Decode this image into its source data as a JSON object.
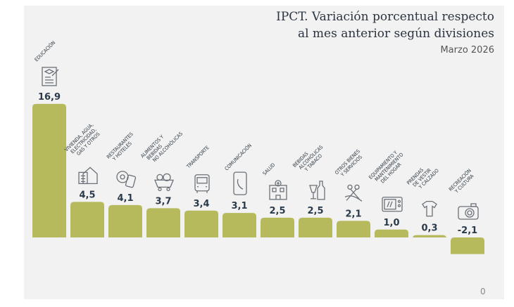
{
  "chart_data": {
    "type": "bar",
    "title": "IPCT. Variación porcentual respecto al mes anterior según divisiones",
    "title_lines": [
      "IPCT. Variación porcentual respecto",
      "al mes anterior según divisiones"
    ],
    "subtitle": "Marzo 2026",
    "categories": [
      {
        "label": [
          "EDUCACIÓN"
        ],
        "icon": "diploma-icon"
      },
      {
        "label": [
          "VIVIENDA, AGUA,",
          "ELECTRICIDAD,",
          "GAS Y OTROS"
        ],
        "icon": "house-icon"
      },
      {
        "label": [
          "RESTAURANTES",
          "Y HOTELES"
        ],
        "icon": "plate-luggage-icon"
      },
      {
        "label": [
          "ALIMENTOS Y",
          "BEBIDAS",
          "NO ALCOHÓLICAS"
        ],
        "icon": "food-cart-icon"
      },
      {
        "label": [
          "TRANSPORTE"
        ],
        "icon": "bus-icon"
      },
      {
        "label": [
          "COMUNICACIÓN"
        ],
        "icon": "phone-icon"
      },
      {
        "label": [
          "SALUD"
        ],
        "icon": "hospital-icon"
      },
      {
        "label": [
          "BEBIDAS",
          "ALCOHÓLICAS",
          "Y TABACO"
        ],
        "icon": "wine-bottle-icon"
      },
      {
        "label": [
          "OTROS BIENES",
          "Y SERVICIOS"
        ],
        "icon": "scissors-icon"
      },
      {
        "label": [
          "EQUIPAMIENTO Y",
          "MANTENIMIENTO",
          "DEL HOGAR"
        ],
        "icon": "microwave-icon"
      },
      {
        "label": [
          "PRENDAS",
          "DE VESTIR",
          "Y CALZADO"
        ],
        "icon": "clothes-icon"
      },
      {
        "label": [
          "RECREACIÓN",
          "Y CULTURA"
        ],
        "icon": "camera-icon"
      }
    ],
    "values": [
      16.9,
      4.5,
      4.1,
      3.7,
      3.4,
      3.1,
      2.5,
      2.5,
      2.1,
      1.0,
      0.3,
      -2.1
    ],
    "value_labels": [
      "16,9",
      "4,5",
      "4,1",
      "3,7",
      "3,4",
      "3,1",
      "2,5",
      "2,5",
      "2,1",
      "1,0",
      "0,3",
      "-2,1"
    ],
    "baseline_label": "0",
    "xlabel": "",
    "ylabel": "",
    "grid": false,
    "bar_color": "#b6ba5c",
    "icon_color": "#6b7178"
  }
}
